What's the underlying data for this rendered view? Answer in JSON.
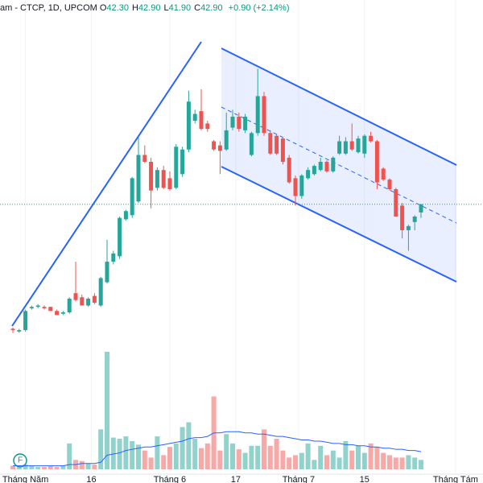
{
  "chart_data": {
    "type": "candlestick",
    "title": "am - CTCP, 1D, UPCOM",
    "ohlc_legend": [
      {
        "label": "O",
        "value": "42.30"
      },
      {
        "label": "H",
        "value": "42.90"
      },
      {
        "label": "L",
        "value": "41.90"
      },
      {
        "label": "C",
        "value": "42.90"
      }
    ],
    "change": "+0.90 (+2.14%)",
    "marker": "F",
    "up_color": "#26a69a",
    "down_color": "#ef5350",
    "ma_color": "#2962ff",
    "ylim": [
      33,
      57
    ],
    "vlim": [
      0,
      100
    ],
    "xlim": [
      -2.05,
      74.87
    ],
    "xticks": [
      {
        "value": 2,
        "label": "Tháng Năm"
      },
      {
        "value": 12.5,
        "label": "16"
      },
      {
        "value": 25,
        "label": "Tháng 6"
      },
      {
        "value": 35.5,
        "label": "17"
      },
      {
        "value": 45.5,
        "label": "Tháng 7"
      },
      {
        "value": 56,
        "label": "15"
      },
      {
        "value": 70.5,
        "label": "Tháng Tám"
      }
    ],
    "open": [
      33.8,
      33.6,
      33.7,
      35.3,
      35.4,
      35.4,
      35.4,
      35.1,
      34.9,
      35.0,
      36.4,
      36.1,
      35.5,
      36.2,
      35.5,
      37.2,
      38.7,
      39.1,
      41.8,
      42.1,
      43.1,
      46.5,
      46.0,
      44.1,
      45.4,
      44.8,
      44.1,
      45.1,
      46.9,
      49.0,
      49.7,
      48.8,
      47.5,
      47.2,
      46.9,
      48.5,
      49.3,
      48.3,
      46.5,
      48.1,
      50.8,
      48.1,
      47.9,
      47.7,
      46.3,
      44.8,
      43.5,
      44.8,
      45.1,
      45.4,
      46.0,
      45.3,
      46.6,
      46.6,
      47.5,
      46.7,
      46.6,
      47.9,
      47.5,
      45.5,
      44.7,
      44.0,
      42.8,
      41.0,
      41.6,
      42.3
    ],
    "high": [
      33.9,
      33.8,
      35.2,
      35.5,
      35.6,
      35.5,
      35.4,
      35.2,
      35.1,
      36.1,
      38.7,
      36.3,
      36.1,
      36.4,
      37.6,
      40.3,
      39.5,
      42.0,
      42.5,
      44.9,
      47.8,
      47.2,
      46.3,
      45.6,
      45.7,
      45.3,
      47.3,
      47.1,
      51.2,
      49.8,
      51.3,
      49.0,
      47.6,
      47.5,
      49.6,
      49.8,
      49.6,
      49.5,
      48.2,
      52.8,
      51.1,
      48.3,
      48.0,
      47.8,
      46.5,
      45.0,
      45.1,
      45.6,
      45.8,
      46.3,
      46.1,
      46.4,
      47.9,
      47.8,
      48.8,
      47.9,
      48.0,
      48.2,
      47.6,
      45.6,
      44.8,
      44.1,
      43.0,
      41.4,
      42.1,
      42.9
    ],
    "low": [
      33.5,
      33.5,
      33.6,
      35.2,
      35.3,
      35.2,
      35.1,
      34.8,
      34.8,
      34.9,
      35.8,
      35.5,
      35.4,
      35.6,
      35.4,
      37.1,
      38.5,
      38.9,
      41.7,
      41.9,
      43.0,
      45.9,
      42.6,
      43.9,
      44.0,
      43.9,
      44.0,
      44.9,
      46.7,
      48.8,
      48.3,
      48.2,
      46.8,
      45.1,
      46.8,
      48.3,
      48.2,
      48.1,
      46.4,
      47.9,
      47.9,
      46.5,
      46.5,
      45.8,
      44.4,
      42.8,
      43.3,
      44.7,
      45.0,
      45.3,
      45.2,
      45.2,
      46.5,
      46.5,
      46.8,
      46.6,
      46.3,
      47.4,
      44.0,
      44.6,
      43.9,
      42.0,
      40.4,
      39.5,
      41.0,
      41.9
    ],
    "close": [
      33.7,
      33.7,
      35.1,
      35.4,
      35.5,
      35.3,
      35.1,
      34.8,
      35.0,
      36.0,
      35.9,
      35.5,
      36.0,
      35.7,
      37.5,
      38.7,
      39.3,
      41.9,
      42.4,
      44.8,
      46.5,
      46.0,
      43.9,
      45.4,
      44.1,
      44.0,
      47.1,
      46.9,
      50.4,
      49.5,
      48.4,
      48.4,
      46.9,
      46.8,
      48.3,
      49.3,
      48.4,
      49.3,
      48.1,
      50.8,
      48.1,
      46.6,
      46.6,
      46.0,
      44.5,
      43.5,
      45.0,
      45.4,
      45.7,
      46.0,
      45.3,
      46.3,
      47.5,
      47.5,
      46.9,
      47.7,
      47.9,
      47.5,
      44.5,
      44.7,
      44.0,
      42.0,
      41.0,
      41.3,
      42.0,
      42.9
    ],
    "volume": [
      3,
      2,
      4,
      3,
      2,
      2,
      3,
      2,
      3,
      22,
      8,
      7,
      5,
      4,
      34,
      100,
      27,
      26,
      28,
      24,
      21,
      16,
      10,
      28,
      12,
      19,
      22,
      36,
      40,
      26,
      18,
      22,
      62,
      16,
      30,
      22,
      17,
      14,
      20,
      20,
      34,
      20,
      26,
      16,
      10,
      12,
      14,
      22,
      8,
      20,
      12,
      16,
      10,
      24,
      16,
      20,
      14,
      22,
      19,
      14,
      12,
      10,
      10,
      12,
      10,
      8
    ],
    "volume_ma": [
      3,
      3,
      3,
      3,
      3,
      3,
      3,
      3,
      3,
      4,
      4,
      5,
      5,
      5,
      6,
      12,
      13,
      14,
      16,
      17,
      18,
      19,
      19,
      20,
      21,
      22,
      23,
      24,
      26,
      27,
      27,
      28,
      31,
      31,
      32,
      32,
      32,
      31,
      31,
      30,
      30,
      29,
      28,
      28,
      27,
      26,
      25,
      25,
      24,
      24,
      23,
      22,
      22,
      21,
      21,
      20,
      20,
      19,
      19,
      18,
      18,
      17,
      17,
      16,
      16,
      15
    ]
  }
}
